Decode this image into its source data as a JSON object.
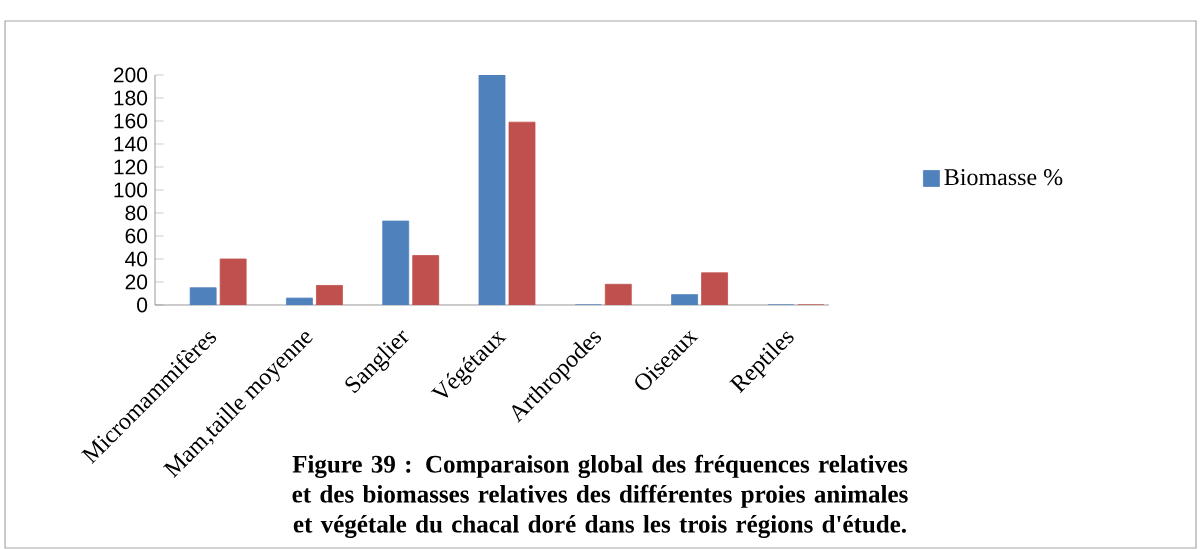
{
  "chart_data": {
    "type": "bar",
    "categories": [
      "Micromammifères",
      "Mam,taille moyenne",
      "Sanglier",
      "Végétaux",
      "Arthropodes",
      "Oiseaux",
      "Reptiles"
    ],
    "series": [
      {
        "name": "Biomasse %",
        "color": "#4f81bd",
        "values": [
          15,
          6,
          73,
          200,
          0,
          9,
          0
        ]
      },
      {
        "color": "#c0504d",
        "values": [
          40,
          17,
          43,
          159,
          18,
          28,
          0
        ]
      }
    ],
    "ylim": [
      0,
      200
    ],
    "yticks": [
      0,
      20,
      40,
      60,
      80,
      100,
      120,
      140,
      160,
      180,
      200
    ],
    "legend": "right",
    "annotations": [
      "Figure 39 : Comparaison global des fréquences relatives et des biomasses relatives des différentes proies animales et végétale du chacal doré dans les trois régions d'étude."
    ]
  }
}
